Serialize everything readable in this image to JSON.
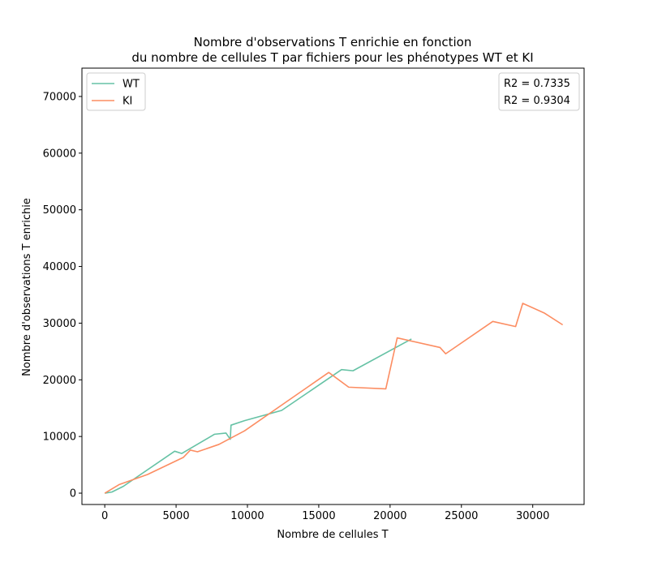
{
  "chart_data": {
    "type": "line",
    "title_line1": "Nombre d'observations T enrichie en fonction",
    "title_line2": "du nombre de cellules T par fichiers pour les phénotypes WT et KI",
    "xlabel": "Nombre de cellules T",
    "ylabel": "Nombre d'observations T enrichie",
    "xlim": [
      -1600,
      33600
    ],
    "ylim": [
      -2000,
      75000
    ],
    "x_ticks": [
      0,
      5000,
      10000,
      15000,
      20000,
      25000,
      30000
    ],
    "y_ticks": [
      0,
      10000,
      20000,
      30000,
      40000,
      50000,
      60000,
      70000
    ],
    "grid": false,
    "legend_position": "top-left",
    "annotation_position": "top-right",
    "annotations": [
      "R2 = 0.7335",
      "R2 = 0.9304"
    ],
    "series": [
      {
        "name": "WT",
        "color": "#66c2a5",
        "points": [
          [
            0,
            0
          ],
          [
            500,
            200
          ],
          [
            1300,
            1200
          ],
          [
            4900,
            7400
          ],
          [
            5400,
            7000
          ],
          [
            7700,
            10400
          ],
          [
            8500,
            10600
          ],
          [
            8800,
            9500
          ],
          [
            8850,
            12000
          ],
          [
            9800,
            12800
          ],
          [
            12400,
            14600
          ],
          [
            16600,
            21800
          ],
          [
            17400,
            21600
          ],
          [
            21500,
            27200
          ]
        ]
      },
      {
        "name": "KI",
        "color": "#fc8d62",
        "points": [
          [
            0,
            0
          ],
          [
            1000,
            1500
          ],
          [
            3000,
            3300
          ],
          [
            5500,
            6300
          ],
          [
            6000,
            7600
          ],
          [
            6500,
            7300
          ],
          [
            8000,
            8600
          ],
          [
            9800,
            11000
          ],
          [
            15700,
            21300
          ],
          [
            17100,
            18700
          ],
          [
            19700,
            18400
          ],
          [
            20500,
            27400
          ],
          [
            23500,
            25700
          ],
          [
            23900,
            24600
          ],
          [
            27200,
            30300
          ],
          [
            28800,
            29400
          ],
          [
            29300,
            33500
          ],
          [
            30800,
            31800
          ],
          [
            32100,
            29700
          ]
        ]
      }
    ]
  }
}
